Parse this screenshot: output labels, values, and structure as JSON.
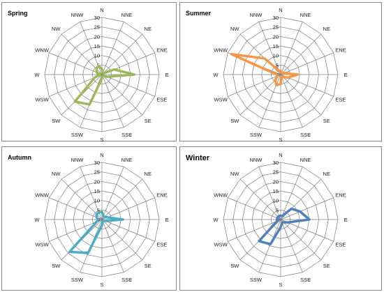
{
  "directions": [
    "N",
    "NNE",
    "NE",
    "ENE",
    "E",
    "ESE",
    "SE",
    "SSE",
    "S",
    "SSW",
    "SW",
    "WSW",
    "W",
    "WNW",
    "NW",
    "NNW"
  ],
  "radial_ticks": [
    0,
    5,
    10,
    15,
    20,
    25,
    30
  ],
  "chart_data": [
    {
      "type": "radar",
      "title": "Spring",
      "rmax": 30,
      "categories": [
        "N",
        "NNE",
        "NE",
        "ENE",
        "E",
        "ESE",
        "SE",
        "SSE",
        "S",
        "SSW",
        "SW",
        "WSW",
        "W",
        "WNW",
        "NW",
        "NNW"
      ],
      "series": [
        {
          "color": "#9bbb59",
          "values": [
            3,
            1,
            1,
            7,
            17,
            3,
            1,
            1,
            2,
            17,
            20,
            4,
            1,
            3,
            4,
            5
          ]
        }
      ]
    },
    {
      "type": "radar",
      "title": "Summer",
      "rmax": 30,
      "categories": [
        "N",
        "NNE",
        "NE",
        "ENE",
        "E",
        "ESE",
        "SE",
        "SSE",
        "S",
        "SSW",
        "SW",
        "WSW",
        "W",
        "WNW",
        "NW",
        "NNW"
      ],
      "series": [
        {
          "color": "#f79646",
          "values": [
            2,
            1,
            1,
            2,
            9,
            4,
            2,
            1,
            5,
            6,
            4,
            2,
            2,
            28,
            12,
            2
          ]
        }
      ]
    },
    {
      "type": "radar",
      "title": "Autumn",
      "rmax": 30,
      "categories": [
        "N",
        "NNE",
        "NE",
        "ENE",
        "E",
        "ESE",
        "SE",
        "SSE",
        "S",
        "SSW",
        "SW",
        "WSW",
        "W",
        "WNW",
        "NW",
        "NNW"
      ],
      "series": [
        {
          "color": "#4bacc6",
          "values": [
            4,
            2,
            2,
            3,
            11,
            2,
            1,
            1,
            3,
            19,
            24,
            3,
            2,
            3,
            4,
            4
          ]
        }
      ]
    },
    {
      "type": "radar",
      "title": "Winter",
      "rmax": 30,
      "categories": [
        "N",
        "NNE",
        "NE",
        "ENE",
        "E",
        "ESE",
        "SE",
        "SSE",
        "S",
        "SSW",
        "SW",
        "WSW",
        "W",
        "WNW",
        "NW",
        "NNW"
      ],
      "series": [
        {
          "color": "#4f81bd",
          "values": [
            2,
            2,
            8,
            11,
            15,
            4,
            2,
            2,
            4,
            14,
            16,
            2,
            1,
            2,
            2,
            2
          ]
        }
      ]
    }
  ]
}
